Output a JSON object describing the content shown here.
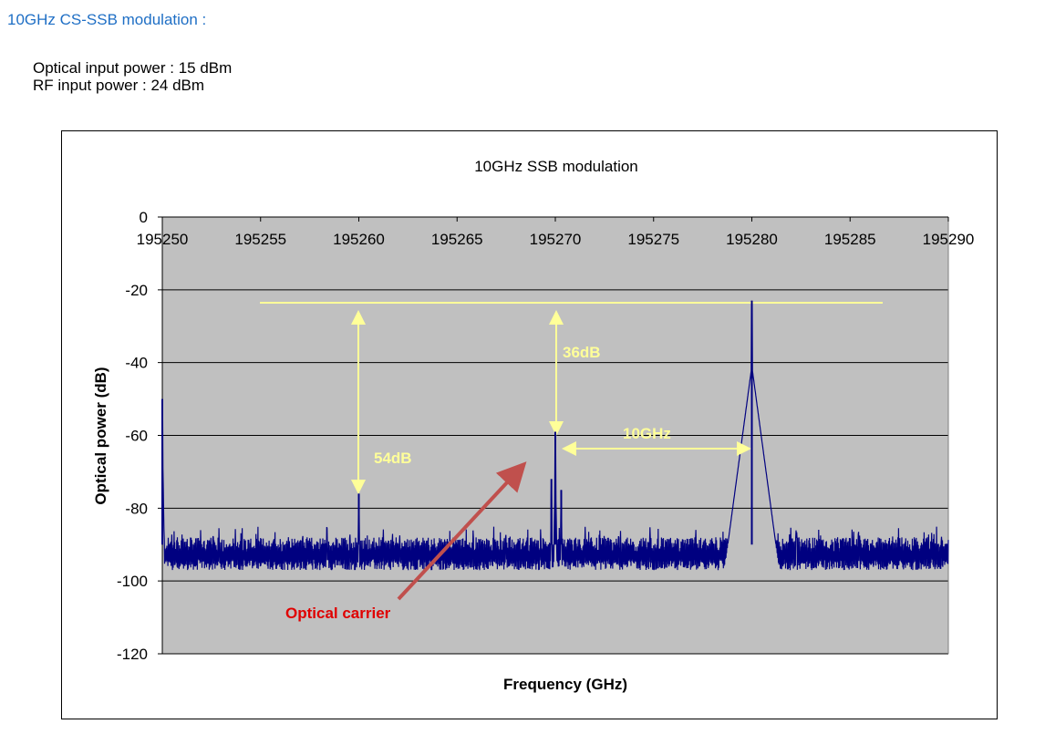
{
  "heading": "10GHz CS-SSB modulation :",
  "info": [
    "Optical input power : 15 dBm",
    "RF input power : 24 dBm"
  ],
  "chart_data": {
    "type": "line",
    "title": "10GHz SSB modulation",
    "xlabel": "Frequency (GHz)",
    "ylabel": "Optical power (dB)",
    "xlim": [
      195250,
      195290
    ],
    "ylim": [
      -120,
      0
    ],
    "xticks": [
      195250,
      195255,
      195260,
      195265,
      195270,
      195275,
      195280,
      195285,
      195290
    ],
    "yticks": [
      0,
      -20,
      -40,
      -60,
      -80,
      -100,
      -120
    ],
    "grid": "horizontal",
    "plot_background": "#c0c0c0",
    "series_color": "#000080",
    "noise_floor_range": [
      -97,
      -88
    ],
    "peaks": [
      {
        "x": 195250.0,
        "y": -50
      },
      {
        "x": 195260.0,
        "y": -76
      },
      {
        "x": 195269.8,
        "y": -72
      },
      {
        "x": 195270.0,
        "y": -59
      },
      {
        "x": 195270.3,
        "y": -75
      },
      {
        "x": 195280.0,
        "y": -23
      }
    ],
    "annotations": {
      "reference_level": -23,
      "label_54db": "54dB",
      "label_36db": "36dB",
      "label_10ghz": "10GHz",
      "label_carrier": "Optical carrier",
      "annotation_color": "#ffff99",
      "carrier_color": "#e00000"
    }
  }
}
